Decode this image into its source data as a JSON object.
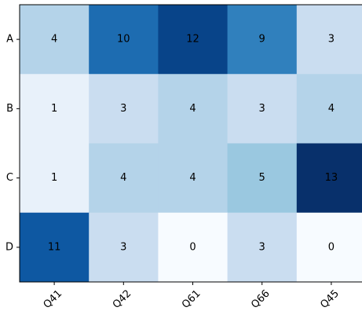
{
  "chart_data": {
    "type": "heatmap",
    "title": "",
    "xlabel": "",
    "ylabel": "",
    "x_categories": [
      "Q41",
      "Q42",
      "Q61",
      "Q66",
      "Q45"
    ],
    "y_categories": [
      "A",
      "B",
      "C",
      "D"
    ],
    "values": [
      [
        4,
        10,
        12,
        9,
        3
      ],
      [
        1,
        3,
        4,
        3,
        4
      ],
      [
        1,
        4,
        4,
        5,
        13
      ],
      [
        11,
        3,
        0,
        3,
        0
      ]
    ],
    "colormap": "Blues",
    "value_range": [
      0,
      13
    ],
    "show_cell_labels": true,
    "x_tick_rotation_deg": 45,
    "grid": false,
    "legend": "none"
  }
}
